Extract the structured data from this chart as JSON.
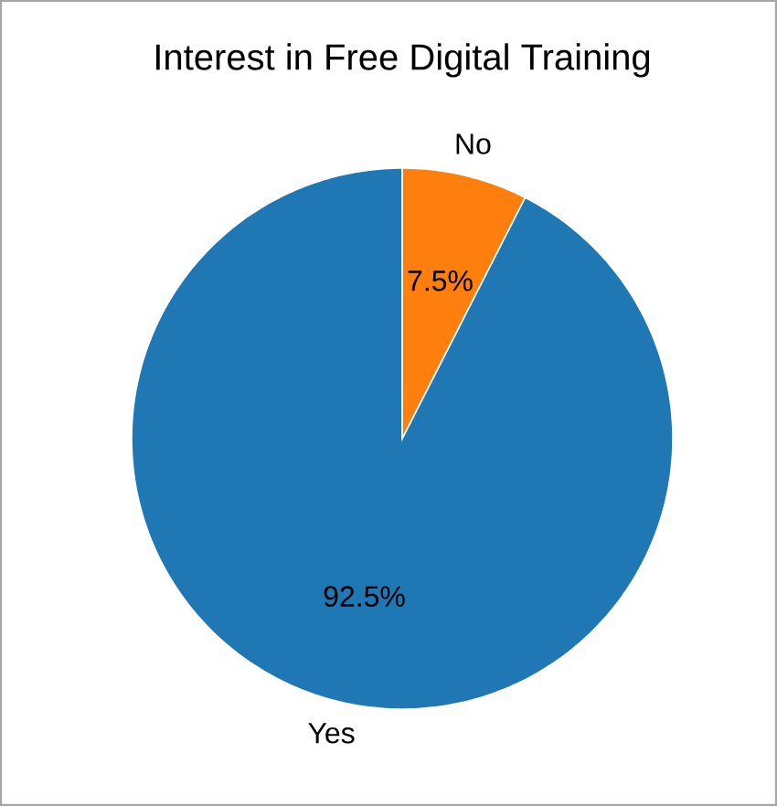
{
  "chart_data": {
    "type": "pie",
    "title": "Interest in Free Digital Training",
    "categories": [
      "Yes",
      "No"
    ],
    "values": [
      92.5,
      7.5
    ],
    "colors": [
      "#1f77b4",
      "#ff7f0e"
    ],
    "value_labels": [
      "92.5%",
      "7.5%"
    ]
  }
}
